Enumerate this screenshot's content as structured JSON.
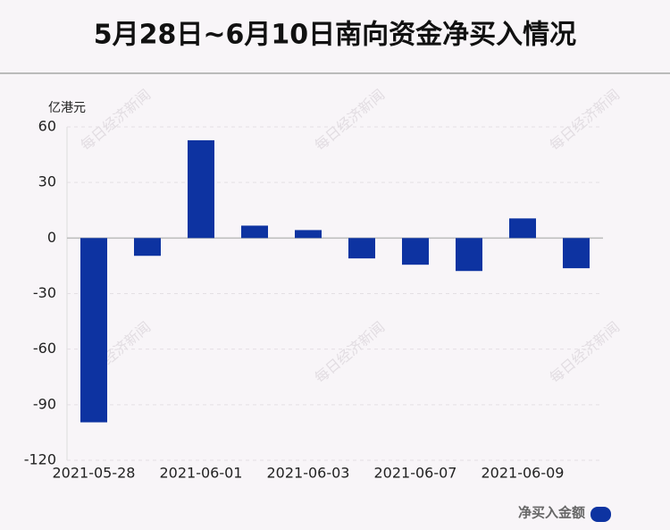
{
  "chart_data": {
    "type": "bar",
    "title": "5月28日~6月10日南向资金净买入情况",
    "y_label": "亿港元",
    "categories": [
      "2021-05-28",
      null,
      "2021-06-01",
      null,
      "2021-06-03",
      null,
      "2021-06-07",
      null,
      "2021-06-09",
      null
    ],
    "series": [
      {
        "name": "净买入金额",
        "color": "#0d33a1",
        "values": [
          -99.5,
          -9.6,
          52.8,
          6.7,
          4.3,
          -11,
          -14.4,
          -17.8,
          10.6,
          -16.3
        ]
      }
    ],
    "ylim": [
      -120,
      60
    ],
    "yticks": [
      -120,
      -90,
      -60,
      -30,
      0,
      30,
      60
    ],
    "grid": true,
    "watermark": "每日经济新闻"
  }
}
